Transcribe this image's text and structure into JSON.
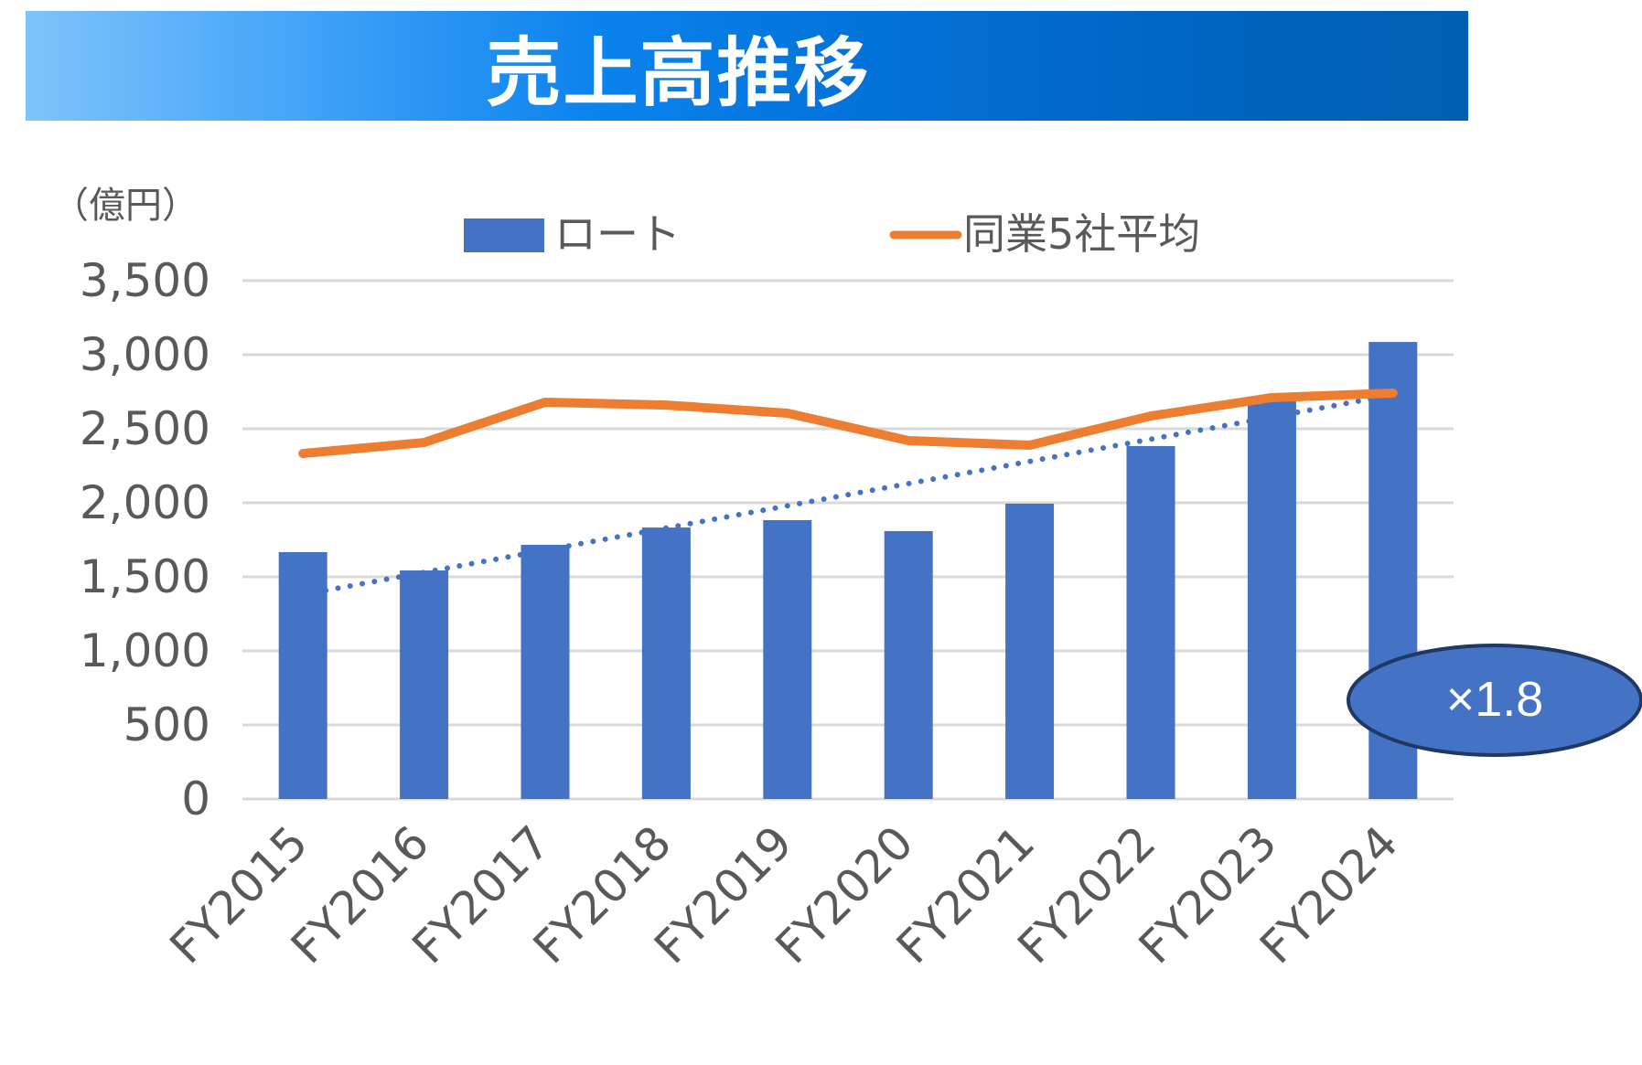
{
  "title": "売上高推移",
  "unit_label": "（億円）",
  "legend": {
    "bar_label": "ロート",
    "line_label": "同業5社平均"
  },
  "annotation": {
    "text": "×1.8"
  },
  "colors": {
    "bar": "#4472c4",
    "line": "#ed7d31",
    "trend": "#4472c4",
    "grid": "#d9d9d9",
    "text": "#595959",
    "ellipse_fill": "#4472c4",
    "ellipse_stroke": "#1f3864"
  },
  "chart_data": {
    "type": "bar",
    "title": "売上高推移",
    "xlabel": "",
    "ylabel": "（億円）",
    "ylim": [
      0,
      3500
    ],
    "yticks": [
      0,
      500,
      1000,
      1500,
      2000,
      2500,
      3000,
      3500
    ],
    "ytick_labels": [
      "0",
      "500",
      "1,000",
      "1,500",
      "2,000",
      "2,500",
      "3,000",
      "3,500"
    ],
    "grid": true,
    "legend_position": "top",
    "categories": [
      "FY2015",
      "FY2016",
      "FY2017",
      "FY2018",
      "FY2019",
      "FY2020",
      "FY2021",
      "FY2022",
      "FY2023",
      "FY2024"
    ],
    "series": [
      {
        "name": "ロート",
        "type": "bar",
        "values": [
          1667,
          1543,
          1716,
          1833,
          1883,
          1809,
          1994,
          2383,
          2685,
          3086
        ]
      },
      {
        "name": "同業5社平均",
        "type": "line",
        "values": [
          2333,
          2407,
          2679,
          2660,
          2605,
          2420,
          2389,
          2586,
          2710,
          2741
        ]
      },
      {
        "name": "ロート trend",
        "type": "linear-trendline",
        "style": "dotted",
        "start": 1390,
        "end": 2720
      }
    ],
    "annotations": [
      {
        "text": "×1.8",
        "shape": "ellipse",
        "near": "FY2024"
      }
    ]
  }
}
